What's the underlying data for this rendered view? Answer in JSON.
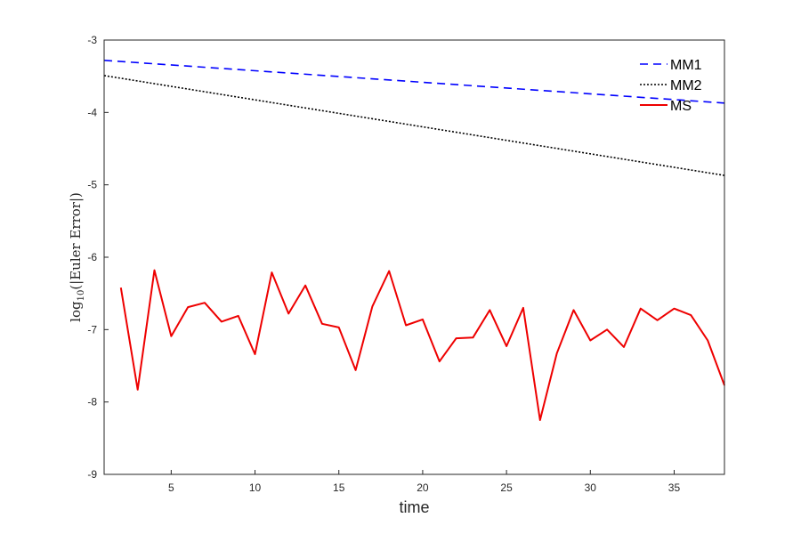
{
  "chart_data": {
    "type": "line",
    "xlabel": "time",
    "ylabel": {
      "prefix": "log",
      "subscript": "10",
      "suffix": "(|Euler Error|)"
    },
    "xlim": [
      1,
      38
    ],
    "ylim": [
      -9,
      -3
    ],
    "x_ticks": [
      5,
      10,
      15,
      20,
      25,
      30,
      35
    ],
    "y_ticks": [
      -9,
      -8,
      -7,
      -6,
      -5,
      -4,
      -3
    ],
    "grid": false,
    "legend_position": "top-right",
    "series": [
      {
        "name": "MM1",
        "color": "#0000ff",
        "style": "dashed",
        "x": [
          1,
          38
        ],
        "y": [
          -3.28,
          -3.87
        ]
      },
      {
        "name": "MM2",
        "color": "#000000",
        "style": "dotted",
        "x": [
          1,
          38
        ],
        "y": [
          -3.49,
          -4.87
        ]
      },
      {
        "name": "MS",
        "color": "#ee0000",
        "style": "solid",
        "x": [
          2,
          3,
          4,
          5,
          6,
          7,
          8,
          9,
          10,
          11,
          12,
          13,
          14,
          15,
          16,
          17,
          18,
          19,
          20,
          21,
          22,
          23,
          24,
          25,
          26,
          27,
          28,
          29,
          30,
          31,
          32,
          33,
          34,
          35,
          36,
          37,
          38
        ],
        "y": [
          -6.42,
          -7.83,
          -6.18,
          -7.09,
          -6.69,
          -6.63,
          -6.89,
          -6.81,
          -7.34,
          -6.21,
          -6.78,
          -6.39,
          -6.92,
          -6.97,
          -7.56,
          -6.68,
          -6.19,
          -6.94,
          -6.86,
          -7.44,
          -7.12,
          -7.11,
          -6.73,
          -7.23,
          -6.7,
          -8.25,
          -7.33,
          -6.73,
          -7.15,
          -7.0,
          -7.24,
          -6.71,
          -6.87,
          -6.71,
          -6.8,
          -7.15,
          -7.77
        ]
      }
    ]
  }
}
